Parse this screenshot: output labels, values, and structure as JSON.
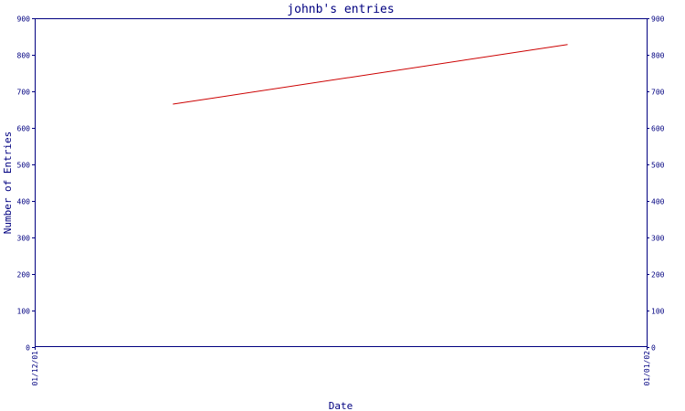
{
  "colors": {
    "axis": "#000080",
    "series": "#cc0000",
    "background": "#ffffff"
  },
  "chart_data": {
    "type": "line",
    "title": "johnb's entries",
    "xlabel": "Date",
    "ylabel": "Number of Entries",
    "x_ticks": [
      "01/12/01",
      "01/01/02"
    ],
    "ylim": [
      0,
      900
    ],
    "y_ticks": [
      0,
      100,
      200,
      300,
      400,
      500,
      600,
      700,
      800,
      900
    ],
    "right_axis": true,
    "grid": false,
    "series": [
      {
        "x": [
          "2001-12-08",
          "2001-12-28"
        ],
        "values": [
          665,
          828
        ]
      }
    ]
  }
}
